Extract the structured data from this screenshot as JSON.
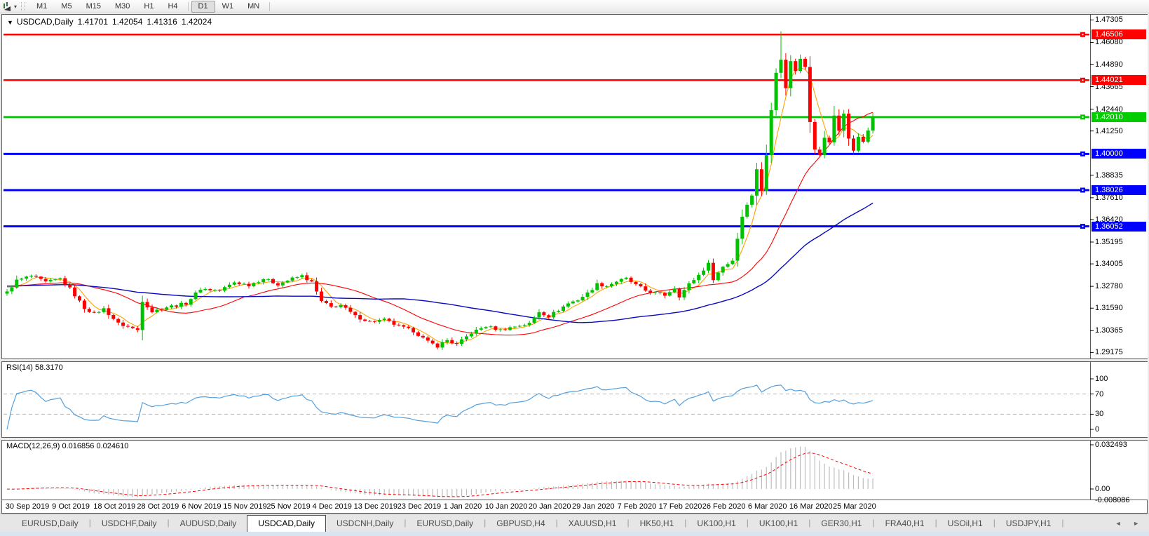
{
  "toolbar": {
    "periods": [
      "M1",
      "M5",
      "M15",
      "M30",
      "H1",
      "H4",
      "D1",
      "W1",
      "MN"
    ],
    "active_period": "D1"
  },
  "chart": {
    "title": "USDCAD,Daily",
    "open": "1.41701",
    "high": "1.42054",
    "low": "1.41316",
    "close": "1.42024"
  },
  "price_axis": {
    "ticks": [
      "1.47305",
      "1.46080",
      "1.44890",
      "1.43665",
      "1.42440",
      "1.41250",
      "1.38835",
      "1.37610",
      "1.36420",
      "1.35195",
      "1.34005",
      "1.32780",
      "1.31590",
      "1.30365",
      "1.29175"
    ]
  },
  "hlines": [
    {
      "price": 1.46506,
      "label": "1.46506",
      "color": "#ff0000",
      "width": 2.5
    },
    {
      "price": 1.44021,
      "label": "1.44021",
      "color": "#ff0000",
      "width": 2.5
    },
    {
      "price": 1.4201,
      "label": "1.42010",
      "color": "#00cc00",
      "width": 3
    },
    {
      "price": 1.4,
      "label": "1.40000",
      "color": "#0000ff",
      "width": 3
    },
    {
      "price": 1.38026,
      "label": "1.38026",
      "color": "#0000ff",
      "width": 3
    },
    {
      "price": 1.36052,
      "label": "1.36052",
      "color": "#0000ff",
      "width": 3
    }
  ],
  "chart_data": {
    "type": "candlestick",
    "symbol": "USDCAD",
    "timeframe": "Daily",
    "ylim": [
      1.2896,
      1.4755
    ],
    "bars_total": 180,
    "bar_spacing_px": 6.9,
    "first_bar_x": 10,
    "up_color": "#00c300",
    "down_color": "#ff0000",
    "close_keypoints": [
      [
        0,
        1.3245
      ],
      [
        2,
        1.331
      ],
      [
        5,
        1.3335
      ],
      [
        8,
        1.33
      ],
      [
        11,
        1.332
      ],
      [
        13,
        1.3265
      ],
      [
        16,
        1.316
      ],
      [
        18,
        1.313
      ],
      [
        20,
        1.3155
      ],
      [
        23,
        1.3075
      ],
      [
        27,
        1.304
      ],
      [
        28,
        1.32
      ],
      [
        30,
        1.314
      ],
      [
        33,
        1.3165
      ],
      [
        37,
        1.3185
      ],
      [
        40,
        1.3265
      ],
      [
        44,
        1.3255
      ],
      [
        47,
        1.33
      ],
      [
        50,
        1.3285
      ],
      [
        53,
        1.332
      ],
      [
        56,
        1.329
      ],
      [
        59,
        1.332
      ],
      [
        61,
        1.3335
      ],
      [
        63,
        1.33
      ],
      [
        65,
        1.3195
      ],
      [
        67,
        1.3165
      ],
      [
        69,
        1.3175
      ],
      [
        72,
        1.3115
      ],
      [
        75,
        1.3085
      ],
      [
        78,
        1.3095
      ],
      [
        81,
        1.306
      ],
      [
        84,
        1.3035
      ],
      [
        87,
        1.2975
      ],
      [
        89,
        1.2952
      ],
      [
        91,
        1.2985
      ],
      [
        93,
        1.296
      ],
      [
        96,
        1.3025
      ],
      [
        99,
        1.306
      ],
      [
        102,
        1.304
      ],
      [
        105,
        1.306
      ],
      [
        108,
        1.3075
      ],
      [
        110,
        1.314
      ],
      [
        112,
        1.3115
      ],
      [
        114,
        1.315
      ],
      [
        116,
        1.3185
      ],
      [
        118,
        1.3205
      ],
      [
        120,
        1.324
      ],
      [
        122,
        1.329
      ],
      [
        124,
        1.328
      ],
      [
        126,
        1.3305
      ],
      [
        128,
        1.332
      ],
      [
        130,
        1.3285
      ],
      [
        132,
        1.3255
      ],
      [
        134,
        1.324
      ],
      [
        136,
        1.323
      ],
      [
        138,
        1.327
      ],
      [
        139,
        1.3225
      ],
      [
        141,
        1.329
      ],
      [
        143,
        1.334
      ],
      [
        145,
        1.34
      ],
      [
        146,
        1.332
      ],
      [
        148,
        1.3385
      ],
      [
        150,
        1.342
      ],
      [
        152,
        1.366
      ],
      [
        153,
        1.373
      ],
      [
        154,
        1.377
      ],
      [
        155,
        1.392
      ],
      [
        156,
        1.38
      ],
      [
        157,
        1.399
      ],
      [
        158,
        1.424
      ],
      [
        159,
        1.445
      ],
      [
        160,
        1.452
      ],
      [
        161,
        1.4355
      ],
      [
        162,
        1.451
      ],
      [
        163,
        1.445
      ],
      [
        164,
        1.452
      ],
      [
        165,
        1.448
      ],
      [
        166,
        1.418
      ],
      [
        167,
        1.403
      ],
      [
        168,
        1.399
      ],
      [
        169,
        1.409
      ],
      [
        170,
        1.406
      ],
      [
        171,
        1.421
      ],
      [
        172,
        1.413
      ],
      [
        173,
        1.422
      ],
      [
        174,
        1.408
      ],
      [
        175,
        1.402
      ],
      [
        176,
        1.41
      ],
      [
        177,
        1.406
      ],
      [
        178,
        1.413
      ],
      [
        179,
        1.42024
      ]
    ],
    "spike": {
      "bar": 160,
      "high": 1.4668
    },
    "moving_averages": [
      {
        "period": 5,
        "color": "#ffa200"
      },
      {
        "period": 22,
        "color": "#ff0000"
      },
      {
        "period": 55,
        "color": "#0a0ac0"
      }
    ]
  },
  "rsi": {
    "name": "RSI(14)",
    "value": "58.3170",
    "period": 14,
    "axis": [
      "100",
      "70",
      "30",
      "0"
    ],
    "upper_level": 70,
    "lower_level": 30,
    "line_color": "#55a0dd"
  },
  "macd": {
    "name": "MACD(12,26,9)",
    "main_value": "0.016856",
    "signal_value": "0.024610",
    "fast": 12,
    "slow": 26,
    "signal": 9,
    "axis_max": "0.032493",
    "axis_zero": "0.00",
    "axis_min": "-0.008086",
    "hist_color": "#bdbdbd",
    "signal_color": "#ff0000"
  },
  "time_axis": {
    "dates": [
      "30 Sep 2019",
      "9 Oct 2019",
      "18 Oct 2019",
      "28 Oct 2019",
      "6 Nov 2019",
      "15 Nov 2019",
      "25 Nov 2019",
      "4 Dec 2019",
      "13 Dec 2019",
      "23 Dec 2019",
      "1 Jan 2020",
      "10 Jan 2020",
      "20 Jan 2020",
      "29 Jan 2020",
      "7 Feb 2020",
      "17 Feb 2020",
      "26 Feb 2020",
      "6 Mar 2020",
      "16 Mar 2020",
      "25 Mar 2020"
    ]
  },
  "tabs": {
    "items": [
      {
        "label": "EURUSD,Daily",
        "active": false
      },
      {
        "label": "USDCHF,Daily",
        "active": false
      },
      {
        "label": "AUDUSD,Daily",
        "active": false
      },
      {
        "label": "USDCAD,Daily",
        "active": true
      },
      {
        "label": "USDCNH,Daily",
        "active": false
      },
      {
        "label": "EURUSD,Daily",
        "active": false
      },
      {
        "label": "GBPUSD,H4",
        "active": false
      },
      {
        "label": "XAUUSD,H1",
        "active": false
      },
      {
        "label": "HK50,H1",
        "active": false
      },
      {
        "label": "UK100,H1",
        "active": false
      },
      {
        "label": "UK100,H1",
        "active": false
      },
      {
        "label": "GER30,H1",
        "active": false
      },
      {
        "label": "FRA40,H1",
        "active": false
      },
      {
        "label": "USOil,H1",
        "active": false
      },
      {
        "label": "USDJPY,H1",
        "active": false
      }
    ],
    "left_arrow": "◄",
    "right_arrow": "►"
  }
}
